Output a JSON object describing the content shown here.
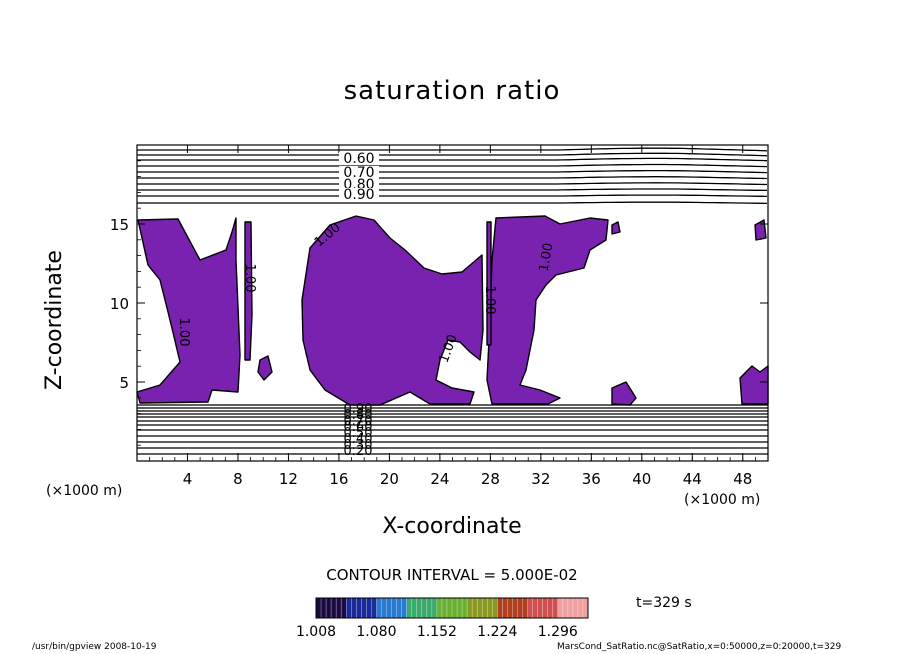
{
  "title": "saturation ratio",
  "xlabel": "X-coordinate",
  "ylabel": "Z-coordinate",
  "x_unit_left": "(×1000 m)",
  "x_unit_right": "(×1000 m)",
  "contour_interval": "CONTOUR INTERVAL = 5.000E-02",
  "time_label": "t=329 s",
  "footer_left": "/usr/bin/gpview   2008-10-19",
  "footer_right": "MarsCond_SatRatio.nc@SatRatio,x=0:50000,z=0:20000,t=329",
  "colors": {
    "fill": "#7a22b0",
    "line": "#000000",
    "background": "#ffffff"
  },
  "chart_data": {
    "type": "contour",
    "xlim": [
      0,
      50
    ],
    "ylim": [
      0,
      20
    ],
    "x_ticks": [
      "4",
      "8",
      "12",
      "16",
      "20",
      "24",
      "28",
      "32",
      "36",
      "40",
      "44",
      "48"
    ],
    "y_ticks": [
      "5",
      "10",
      "15"
    ],
    "contour_labels_upper": [
      "0.60",
      "0.70",
      "0.80",
      "0.90"
    ],
    "contour_labels_lower": [
      "0.90",
      "0.80",
      "0.70",
      "0.60",
      "0.50",
      "0.40",
      "0.30",
      "0.20"
    ],
    "contour_labels_saturation": [
      "1.00",
      "1.00",
      "1.00",
      "1.00",
      "1.00",
      "1.00"
    ],
    "colorbar": {
      "ticks": [
        "1.008",
        "1.080",
        "1.152",
        "1.224",
        "1.296"
      ],
      "min": 1.008,
      "max": 1.332
    }
  }
}
